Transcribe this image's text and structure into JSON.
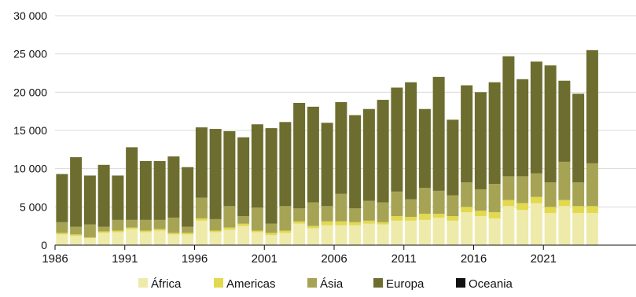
{
  "chart_data": {
    "type": "bar",
    "stacked": true,
    "x": [
      1986,
      1987,
      1988,
      1989,
      1990,
      1991,
      1992,
      1993,
      1994,
      1995,
      1996,
      1997,
      1998,
      1999,
      2000,
      2001,
      2002,
      2003,
      2004,
      2005,
      2006,
      2007,
      2008,
      2009,
      2010,
      2011,
      2012,
      2013,
      2014,
      2015,
      2016,
      2017,
      2018,
      2019,
      2020,
      2021,
      2022,
      2023,
      2024
    ],
    "x_tick_labels": [
      "1986",
      "1991",
      "1996",
      "2001",
      "2006",
      "2011",
      "2016",
      "2021"
    ],
    "y_ticks": [
      0,
      5000,
      10000,
      15000,
      20000,
      25000,
      30000
    ],
    "y_tick_labels": [
      "0",
      "5 000",
      "10 000",
      "15 000",
      "20 000",
      "25 000",
      "30 000"
    ],
    "ylim": [
      0,
      30000
    ],
    "grid": "horizontal",
    "legend_position": "bottom",
    "title": "",
    "xlabel": "",
    "ylabel": "",
    "series": [
      {
        "name": "África",
        "color": "#eeeaaa",
        "values": [
          1400,
          1200,
          900,
          1600,
          1700,
          2100,
          1700,
          1900,
          1400,
          1400,
          3200,
          1700,
          2000,
          2500,
          1700,
          1300,
          1600,
          2800,
          2200,
          2600,
          2600,
          2600,
          2800,
          2700,
          3200,
          3200,
          3300,
          3600,
          3200,
          4300,
          3800,
          3500,
          5100,
          4600,
          5500,
          4200,
          5100,
          4200,
          4200
        ]
      },
      {
        "name": "Americas",
        "color": "#e2d94f",
        "values": [
          200,
          200,
          100,
          200,
          200,
          200,
          200,
          200,
          200,
          200,
          300,
          200,
          300,
          300,
          200,
          300,
          300,
          300,
          300,
          500,
          500,
          400,
          400,
          300,
          600,
          500,
          800,
          500,
          600,
          700,
          700,
          800,
          800,
          900,
          800,
          800,
          800,
          900,
          900
        ]
      },
      {
        "name": "Ásia",
        "color": "#a6a454",
        "values": [
          1400,
          1000,
          1700,
          600,
          1400,
          1000,
          1400,
          1200,
          2000,
          800,
          2700,
          1500,
          2800,
          1000,
          3000,
          1200,
          3200,
          1700,
          3100,
          2000,
          3600,
          1800,
          2600,
          2600,
          3200,
          2300,
          3400,
          3000,
          2700,
          3200,
          2800,
          3700,
          3100,
          3500,
          3100,
          3200,
          5000,
          3100,
          5600
        ]
      },
      {
        "name": "Europa",
        "color": "#6d6d2f",
        "values": [
          6300,
          9100,
          6400,
          8100,
          5800,
          9500,
          7700,
          7700,
          8000,
          7800,
          9200,
          11800,
          9800,
          10300,
          10900,
          12500,
          11000,
          13800,
          12500,
          10900,
          12000,
          12200,
          12000,
          13400,
          13600,
          15300,
          10300,
          14900,
          9900,
          12700,
          12700,
          13300,
          15700,
          12700,
          14600,
          15300,
          10600,
          11600,
          14800
        ]
      },
      {
        "name": "Oceania",
        "color": "#111111",
        "values": [
          0,
          0,
          0,
          0,
          0,
          0,
          0,
          0,
          0,
          0,
          0,
          0,
          0,
          0,
          0,
          0,
          0,
          0,
          0,
          0,
          0,
          0,
          0,
          0,
          0,
          0,
          0,
          0,
          0,
          0,
          0,
          0,
          0,
          0,
          0,
          0,
          0,
          0,
          0
        ]
      }
    ]
  }
}
